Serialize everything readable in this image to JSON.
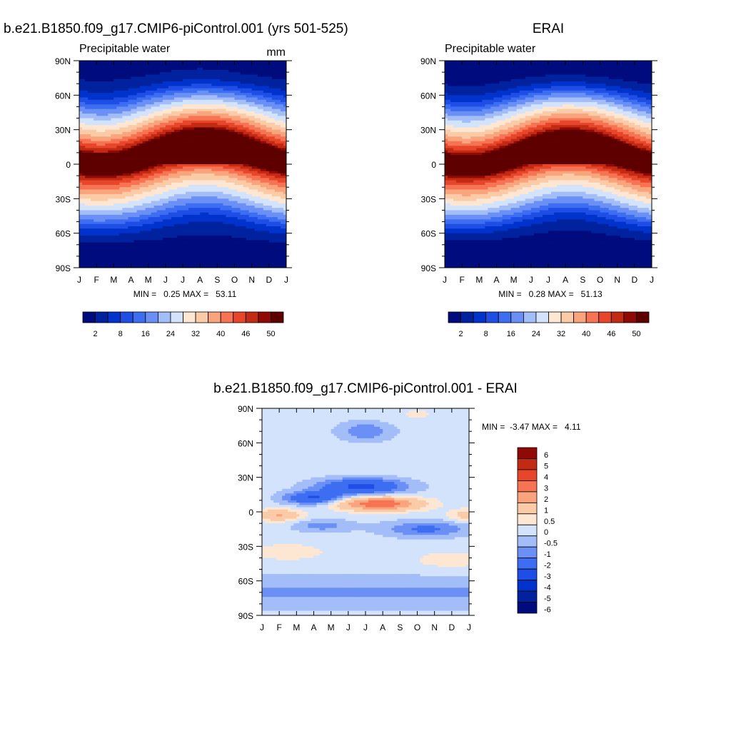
{
  "panels": {
    "model": {
      "title": "b.e21.B1850.f09_g17.CMIP6-piControl.001 (yrs 501-525)",
      "subtitle_left": "Precipitable water",
      "subtitle_right": "mm",
      "stats": "MIN =   0.25 MAX =   53.11"
    },
    "obs": {
      "title": "ERAI",
      "subtitle_left": "Precipitable water",
      "stats": "MIN =   0.28 MAX =   51.13"
    },
    "diff": {
      "title": "b.e21.B1850.f09_g17.CMIP6-piControl.001 - ERAI",
      "stats": "MIN =  -3.47 MAX =   4.11"
    }
  },
  "colors": {
    "abs_levels": [
      "#000c7d",
      "#00229e",
      "#0033cc",
      "#1f4ee6",
      "#3d6ef2",
      "#6b90f5",
      "#a3bdf8",
      "#d2e3fb",
      "#fde7d3",
      "#fbcaa6",
      "#f9a47c",
      "#f67454",
      "#e8462a",
      "#c22a13",
      "#8f0a05",
      "#5e0000"
    ],
    "diff_levels": [
      "#000c7d",
      "#00229e",
      "#0033cc",
      "#1f4ee6",
      "#3d6ef2",
      "#6b90f5",
      "#a3bdf8",
      "#d2e3fb",
      "#fde7d3",
      "#fbcaa6",
      "#f9a47c",
      "#f67454",
      "#e8462a",
      "#c22a13",
      "#8f0a05"
    ]
  },
  "axes": {
    "months": [
      "J",
      "F",
      "M",
      "A",
      "M",
      "J",
      "J",
      "A",
      "S",
      "O",
      "N",
      "D",
      "J"
    ],
    "lat_labels": [
      "90N",
      "60N",
      "30N",
      "0",
      "30S",
      "60S",
      "90S"
    ]
  },
  "colorbars": {
    "abs_labels": [
      "2",
      "8",
      "16",
      "24",
      "32",
      "40",
      "46",
      "50"
    ],
    "diff_labels": [
      "6",
      "5",
      "4",
      "3",
      "2",
      "1",
      "0.5",
      "0",
      "-0.5",
      "-1",
      "-2",
      "-3",
      "-4",
      "-5",
      "-6"
    ]
  },
  "chart_data": [
    {
      "type": "heatmap",
      "title": "b.e21.B1850.f09_g17.CMIP6-piControl.001 (yrs 501-525)",
      "subtitle": "Precipitable water",
      "units": "mm",
      "x": [
        "J",
        "F",
        "M",
        "A",
        "M",
        "J",
        "J",
        "A",
        "S",
        "O",
        "N",
        "D",
        "J"
      ],
      "y": [
        "90N",
        "60N",
        "30N",
        "0",
        "30S",
        "60S",
        "90S"
      ],
      "min": 0.25,
      "max": 53.11,
      "contour_levels": [
        2,
        4,
        6,
        8,
        10,
        13,
        16,
        20,
        24,
        28,
        32,
        36,
        40,
        44,
        46,
        50
      ],
      "peak": {
        "lat": 8,
        "month": "Aug",
        "value": 53.11
      }
    },
    {
      "type": "heatmap",
      "title": "ERAI",
      "subtitle": "Precipitable water",
      "x": [
        "J",
        "F",
        "M",
        "A",
        "M",
        "J",
        "J",
        "A",
        "S",
        "O",
        "N",
        "D",
        "J"
      ],
      "y": [
        "90N",
        "60N",
        "30N",
        "0",
        "30S",
        "60S",
        "90S"
      ],
      "min": 0.28,
      "max": 51.13,
      "contour_levels": [
        2,
        4,
        6,
        8,
        10,
        13,
        16,
        20,
        24,
        28,
        32,
        36,
        40,
        44,
        46,
        50
      ],
      "peak": {
        "lat": 7,
        "month": "Aug",
        "value": 51.13
      }
    },
    {
      "type": "heatmap",
      "title": "b.e21.B1850.f09_g17.CMIP6-piControl.001 - ERAI",
      "x": [
        "J",
        "F",
        "M",
        "A",
        "M",
        "J",
        "J",
        "A",
        "S",
        "O",
        "N",
        "D",
        "J"
      ],
      "y": [
        "90N",
        "60N",
        "30N",
        "0",
        "30S",
        "60S",
        "90S"
      ],
      "min": -3.47,
      "max": 4.11,
      "contour_levels": [
        -6,
        -5,
        -4,
        -3,
        -2,
        -1,
        -0.5,
        0,
        0.5,
        1,
        2,
        3,
        4,
        5,
        6
      ]
    }
  ]
}
